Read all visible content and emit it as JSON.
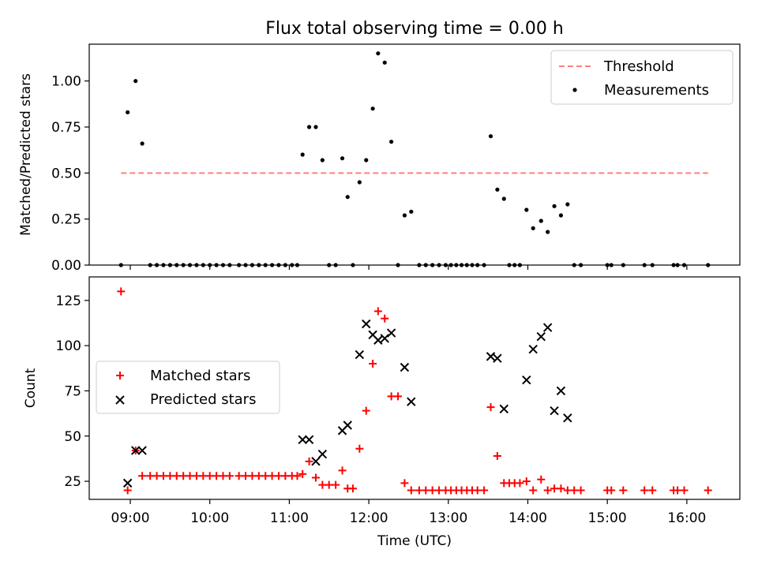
{
  "chart_data": [
    {
      "type": "scatter",
      "title": "Flux total observing time = 0.00 h",
      "ylabel": "Matched/Predicted stars",
      "ylim": [
        0,
        1.2
      ],
      "yticks": [
        "0.00",
        "0.25",
        "0.50",
        "0.75",
        "1.00"
      ],
      "grid": false,
      "legend": "top-right",
      "threshold": {
        "name": "Threshold",
        "y": 0.5,
        "x_range": [
          "08:53",
          "16:16"
        ],
        "color": "#ff7f7f",
        "style": "dashed"
      },
      "series": [
        {
          "name": "Measurements",
          "color": "#000000",
          "points": [
            [
              "08:53",
              0
            ],
            [
              "08:58",
              0.83
            ],
            [
              "09:04",
              1.0
            ],
            [
              "09:09",
              0.66
            ],
            [
              "09:15",
              0
            ],
            [
              "09:20",
              0
            ],
            [
              "09:25",
              0
            ],
            [
              "09:30",
              0
            ],
            [
              "09:35",
              0
            ],
            [
              "09:40",
              0
            ],
            [
              "09:45",
              0
            ],
            [
              "09:50",
              0
            ],
            [
              "09:55",
              0
            ],
            [
              "10:00",
              0
            ],
            [
              "10:05",
              0
            ],
            [
              "10:10",
              0
            ],
            [
              "10:15",
              0
            ],
            [
              "10:22",
              0
            ],
            [
              "10:27",
              0
            ],
            [
              "10:32",
              0
            ],
            [
              "10:37",
              0
            ],
            [
              "10:42",
              0
            ],
            [
              "10:47",
              0
            ],
            [
              "10:52",
              0
            ],
            [
              "10:57",
              0
            ],
            [
              "11:02",
              0
            ],
            [
              "11:06",
              0
            ],
            [
              "11:10",
              0.6
            ],
            [
              "11:15",
              0.75
            ],
            [
              "11:20",
              0.75
            ],
            [
              "11:25",
              0.57
            ],
            [
              "11:30",
              0
            ],
            [
              "11:35",
              0
            ],
            [
              "11:40",
              0.58
            ],
            [
              "11:44",
              0.37
            ],
            [
              "11:48",
              0
            ],
            [
              "11:53",
              0.45
            ],
            [
              "11:58",
              0.57
            ],
            [
              "12:03",
              0.85
            ],
            [
              "12:07",
              1.15
            ],
            [
              "12:12",
              1.1
            ],
            [
              "12:17",
              0.67
            ],
            [
              "12:22",
              0
            ],
            [
              "12:27",
              0.27
            ],
            [
              "12:32",
              0.29
            ],
            [
              "12:38",
              0
            ],
            [
              "12:43",
              0
            ],
            [
              "12:48",
              0
            ],
            [
              "12:53",
              0
            ],
            [
              "12:58",
              0
            ],
            [
              "13:02",
              0
            ],
            [
              "13:06",
              0
            ],
            [
              "13:10",
              0
            ],
            [
              "13:14",
              0
            ],
            [
              "13:18",
              0
            ],
            [
              "13:22",
              0
            ],
            [
              "13:27",
              0
            ],
            [
              "13:32",
              0.7
            ],
            [
              "13:37",
              0.41
            ],
            [
              "13:42",
              0.36
            ],
            [
              "13:46",
              0
            ],
            [
              "13:50",
              0
            ],
            [
              "13:54",
              0
            ],
            [
              "13:59",
              0.3
            ],
            [
              "14:04",
              0.2
            ],
            [
              "14:10",
              0.24
            ],
            [
              "14:15",
              0.18
            ],
            [
              "14:20",
              0.32
            ],
            [
              "14:25",
              0.27
            ],
            [
              "14:30",
              0.33
            ],
            [
              "14:35",
              0
            ],
            [
              "14:40",
              0
            ],
            [
              "15:00",
              0
            ],
            [
              "15:03",
              0
            ],
            [
              "15:12",
              0
            ],
            [
              "15:28",
              0
            ],
            [
              "15:34",
              0
            ],
            [
              "15:50",
              0
            ],
            [
              "15:53",
              0
            ],
            [
              "15:58",
              0
            ],
            [
              "16:16",
              0
            ]
          ]
        }
      ]
    },
    {
      "type": "scatter",
      "xlabel": "Time (UTC)",
      "ylabel": "Count",
      "ylim": [
        15,
        138
      ],
      "yticks": [
        "25",
        "50",
        "75",
        "100",
        "125"
      ],
      "xlim": [
        "08:29",
        "16:40"
      ],
      "xticks": [
        "09:00",
        "10:00",
        "11:00",
        "12:00",
        "13:00",
        "14:00",
        "15:00",
        "16:00"
      ],
      "grid": false,
      "legend": "center-left",
      "series": [
        {
          "name": "Matched stars",
          "marker": "plus",
          "color": "#ff0000",
          "points": [
            [
              "08:53",
              130
            ],
            [
              "08:58",
              20
            ],
            [
              "09:04",
              42
            ],
            [
              "09:09",
              28
            ],
            [
              "09:15",
              28
            ],
            [
              "09:20",
              28
            ],
            [
              "09:25",
              28
            ],
            [
              "09:30",
              28
            ],
            [
              "09:35",
              28
            ],
            [
              "09:40",
              28
            ],
            [
              "09:45",
              28
            ],
            [
              "09:50",
              28
            ],
            [
              "09:55",
              28
            ],
            [
              "10:00",
              28
            ],
            [
              "10:05",
              28
            ],
            [
              "10:10",
              28
            ],
            [
              "10:15",
              28
            ],
            [
              "10:22",
              28
            ],
            [
              "10:27",
              28
            ],
            [
              "10:32",
              28
            ],
            [
              "10:37",
              28
            ],
            [
              "10:42",
              28
            ],
            [
              "10:47",
              28
            ],
            [
              "10:52",
              28
            ],
            [
              "10:57",
              28
            ],
            [
              "11:02",
              28
            ],
            [
              "11:06",
              28
            ],
            [
              "11:10",
              29
            ],
            [
              "11:15",
              36
            ],
            [
              "11:20",
              27
            ],
            [
              "11:25",
              23
            ],
            [
              "11:30",
              23
            ],
            [
              "11:35",
              23
            ],
            [
              "11:40",
              31
            ],
            [
              "11:44",
              21
            ],
            [
              "11:48",
              21
            ],
            [
              "11:53",
              43
            ],
            [
              "11:58",
              64
            ],
            [
              "12:03",
              90
            ],
            [
              "12:07",
              119
            ],
            [
              "12:12",
              115
            ],
            [
              "12:17",
              72
            ],
            [
              "12:22",
              72
            ],
            [
              "12:27",
              24
            ],
            [
              "12:32",
              20
            ],
            [
              "12:38",
              20
            ],
            [
              "12:43",
              20
            ],
            [
              "12:48",
              20
            ],
            [
              "12:53",
              20
            ],
            [
              "12:58",
              20
            ],
            [
              "13:02",
              20
            ],
            [
              "13:06",
              20
            ],
            [
              "13:10",
              20
            ],
            [
              "13:14",
              20
            ],
            [
              "13:18",
              20
            ],
            [
              "13:22",
              20
            ],
            [
              "13:27",
              20
            ],
            [
              "13:32",
              66
            ],
            [
              "13:37",
              39
            ],
            [
              "13:42",
              24
            ],
            [
              "13:46",
              24
            ],
            [
              "13:50",
              24
            ],
            [
              "13:54",
              24
            ],
            [
              "13:59",
              25
            ],
            [
              "14:04",
              20
            ],
            [
              "14:10",
              26
            ],
            [
              "14:15",
              20
            ],
            [
              "14:20",
              21
            ],
            [
              "14:25",
              21
            ],
            [
              "14:30",
              20
            ],
            [
              "14:35",
              20
            ],
            [
              "14:40",
              20
            ],
            [
              "15:00",
              20
            ],
            [
              "15:03",
              20
            ],
            [
              "15:12",
              20
            ],
            [
              "15:28",
              20
            ],
            [
              "15:34",
              20
            ],
            [
              "15:50",
              20
            ],
            [
              "15:53",
              20
            ],
            [
              "15:58",
              20
            ],
            [
              "16:16",
              20
            ]
          ]
        },
        {
          "name": "Predicted stars",
          "marker": "x",
          "color": "#000000",
          "points": [
            [
              "08:58",
              24
            ],
            [
              "09:04",
              42
            ],
            [
              "09:09",
              42
            ],
            [
              "11:10",
              48
            ],
            [
              "11:15",
              48
            ],
            [
              "11:20",
              36
            ],
            [
              "11:25",
              40
            ],
            [
              "11:40",
              53
            ],
            [
              "11:44",
              56
            ],
            [
              "11:53",
              95
            ],
            [
              "11:58",
              112
            ],
            [
              "12:03",
              106
            ],
            [
              "12:07",
              103
            ],
            [
              "12:12",
              104
            ],
            [
              "12:17",
              107
            ],
            [
              "12:27",
              88
            ],
            [
              "12:32",
              69
            ],
            [
              "13:32",
              94
            ],
            [
              "13:37",
              93
            ],
            [
              "13:42",
              65
            ],
            [
              "13:59",
              81
            ],
            [
              "14:04",
              98
            ],
            [
              "14:10",
              105
            ],
            [
              "14:15",
              110
            ],
            [
              "14:20",
              64
            ],
            [
              "14:25",
              75
            ],
            [
              "14:30",
              60
            ]
          ]
        }
      ]
    }
  ]
}
